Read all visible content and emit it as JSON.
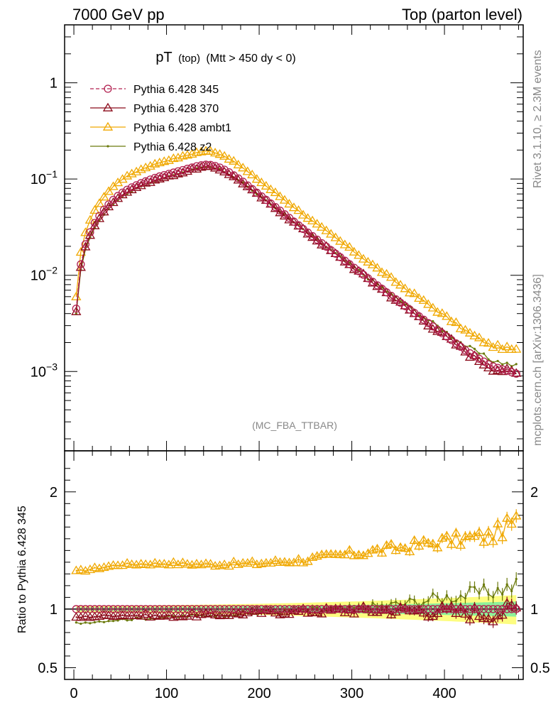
{
  "header": {
    "left": "7000 GeV pp",
    "right": "Top (parton level)"
  },
  "side_text": {
    "top": "Rivet 3.1.10, ≥ 2.3M events",
    "bottom": "mcplots.cern.ch [arXiv:1306.3436]"
  },
  "chart_data": [
    {
      "type": "line",
      "panel": "main",
      "title_main": "pT",
      "title_sub": "(top)",
      "title_cond": "(Mtt > 450 dy < 0)",
      "watermark": "(MC_FBA_TTBAR)",
      "yscale": "log",
      "xlim": [
        -10,
        485
      ],
      "ylim": [
        0.00015,
        4
      ],
      "ytick_labels": [
        "1",
        "10",
        "10",
        "10"
      ],
      "ytick_exponents": [
        "",
        "−1",
        "−2",
        "−3"
      ],
      "legend_placement": "top-left",
      "series": [
        {
          "name": "Pythia 6.428 345",
          "color": "#b22050",
          "marker": "circle",
          "dashed": true,
          "scale": 1.0
        },
        {
          "name": "Pythia 6.428 370",
          "color": "#8b0a1a",
          "marker": "triangle",
          "dashed": false,
          "scale": 0.95
        },
        {
          "name": "Pythia 6.428 ambt1",
          "color": "#f0a800",
          "marker": "triangle",
          "dashed": false,
          "scale": 1.35
        },
        {
          "name": "Pythia 6.428 z2",
          "color": "#6b7a0c",
          "marker": "dot",
          "dashed": false,
          "scale": 0.97
        }
      ],
      "shape_points": {
        "x": [
          2.5,
          7.5,
          12.5,
          17.5,
          22.5,
          30,
          40,
          50,
          60,
          75,
          90,
          105,
          120,
          135,
          145,
          155,
          165,
          180,
          200,
          225,
          250,
          275,
          300,
          325,
          350,
          375,
          400,
          425,
          450,
          477.5
        ],
        "y": [
          0.0045,
          0.013,
          0.021,
          0.028,
          0.035,
          0.045,
          0.058,
          0.07,
          0.08,
          0.093,
          0.105,
          0.115,
          0.126,
          0.138,
          0.142,
          0.135,
          0.122,
          0.098,
          0.069,
          0.045,
          0.029,
          0.019,
          0.0125,
          0.0082,
          0.0054,
          0.0036,
          0.0024,
          0.0016,
          0.00115,
          0.00095
        ]
      }
    },
    {
      "type": "line",
      "panel": "ratio",
      "ylabel": "Ratio to Pythia 6.428 345",
      "xlim": [
        -10,
        485
      ],
      "ylim": [
        0.4,
        2.35
      ],
      "xticks": [
        "0",
        "100",
        "200",
        "300",
        "400"
      ],
      "yticks": [
        "0.5",
        "1",
        "2"
      ],
      "reference_line": 1,
      "ratio_shapes": {
        "x": [
          2.5,
          50,
          100,
          150,
          200,
          250,
          300,
          350,
          400,
          450,
          477.5
        ],
        "ambt1": [
          1.32,
          1.38,
          1.39,
          1.38,
          1.39,
          1.42,
          1.47,
          1.52,
          1.58,
          1.62,
          1.75
        ],
        "370": [
          0.93,
          0.95,
          0.94,
          0.95,
          0.97,
          0.98,
          0.99,
          0.99,
          0.98,
          0.96,
          1.0
        ],
        "z2": [
          0.88,
          0.91,
          0.93,
          0.95,
          0.97,
          0.99,
          1.0,
          1.04,
          1.1,
          1.15,
          1.2
        ]
      }
    }
  ]
}
